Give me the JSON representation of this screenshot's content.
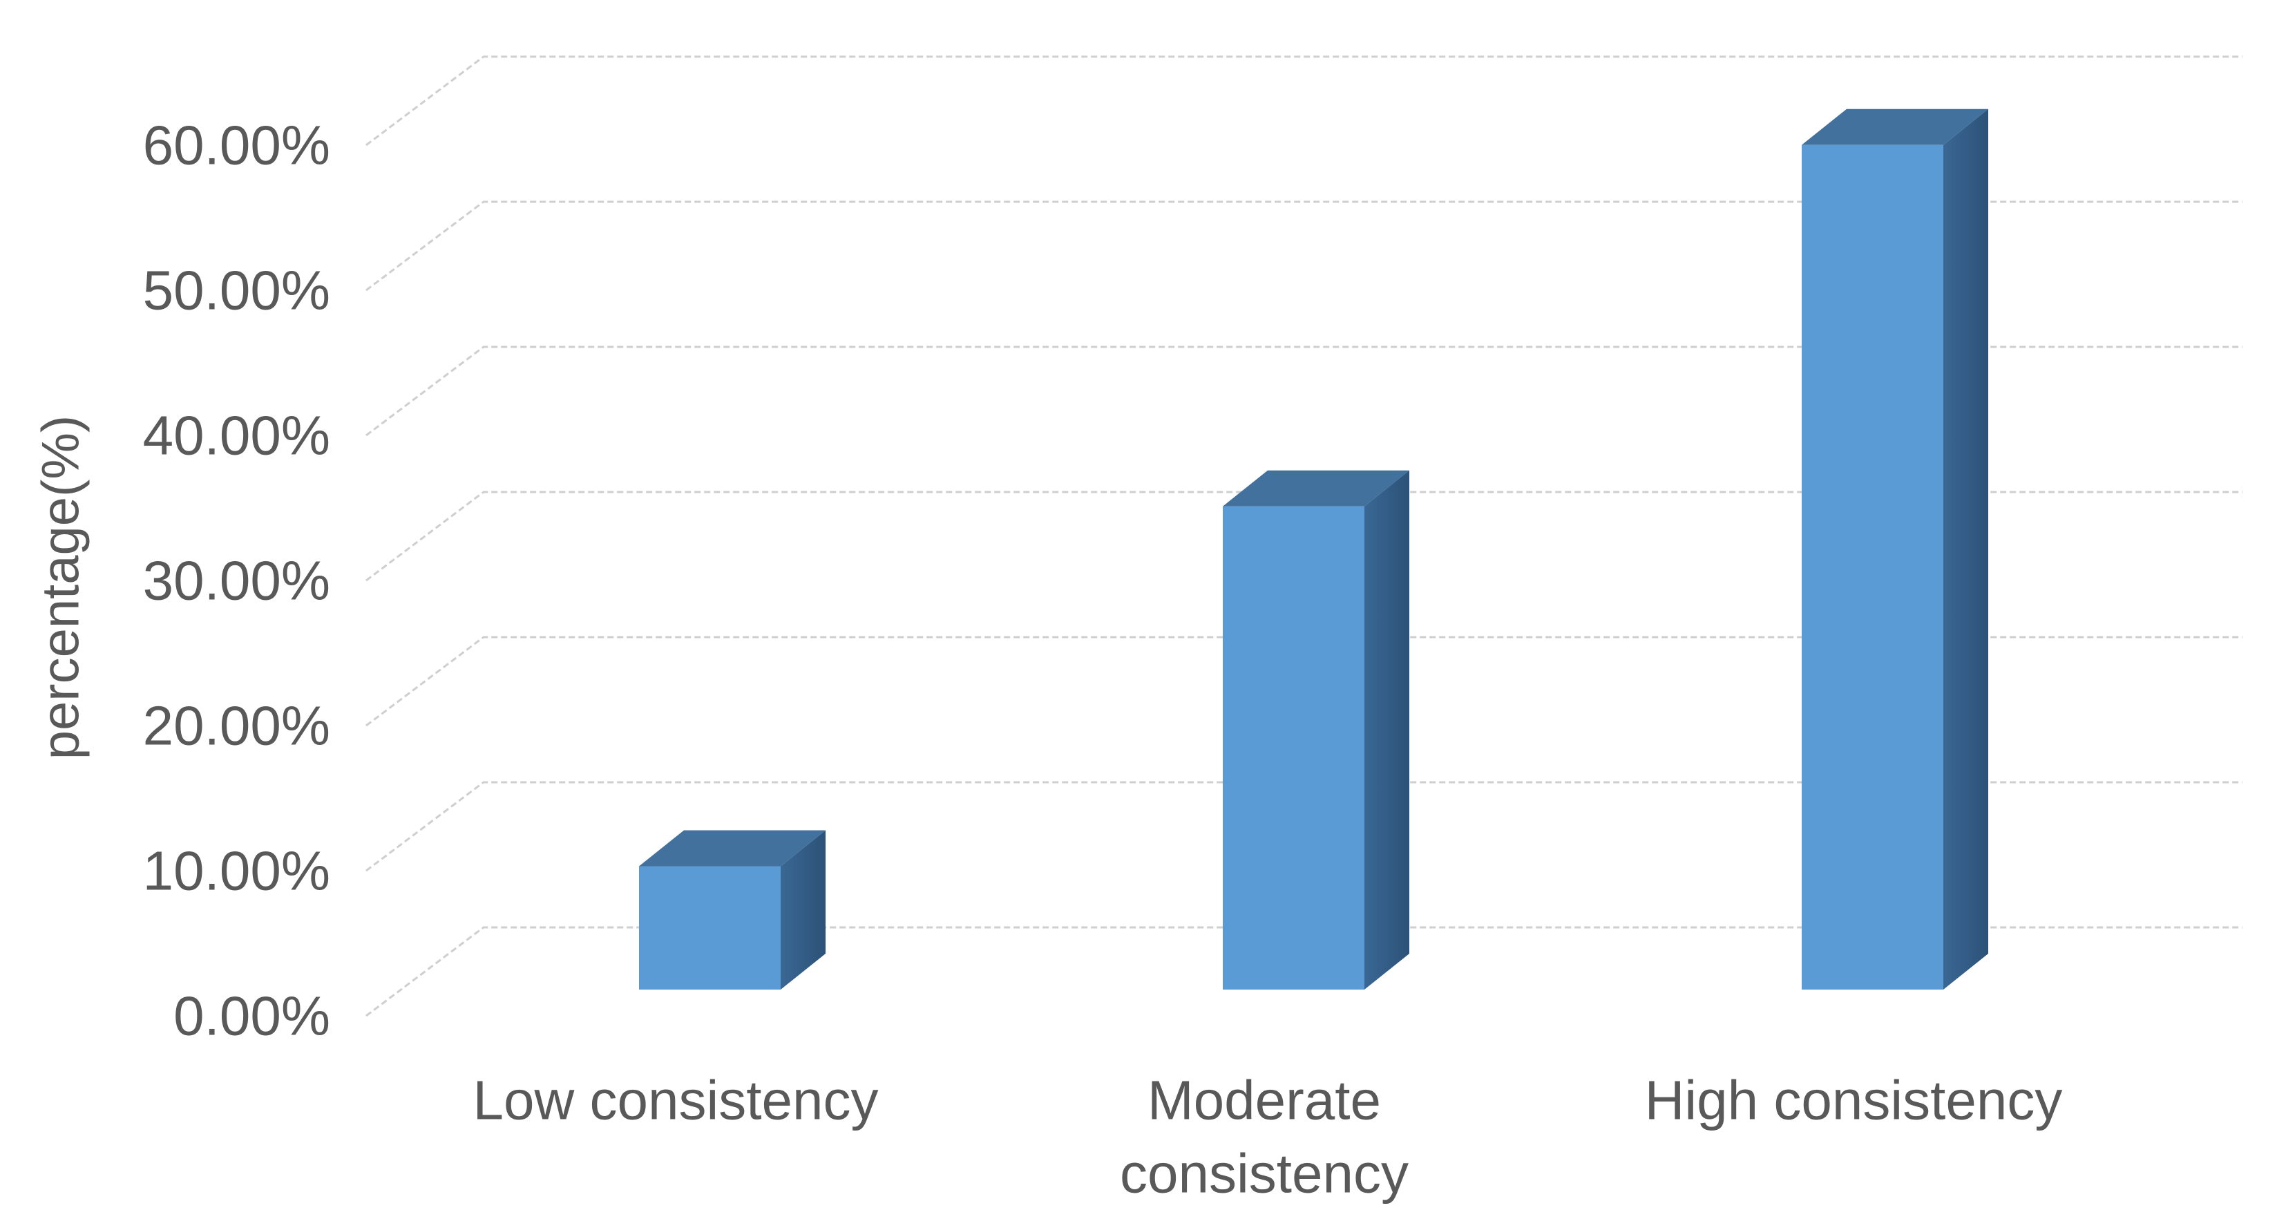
{
  "chart_data": {
    "type": "bar",
    "subtype": "3d-column",
    "title": "",
    "xlabel": "",
    "ylabel": "percentage(%)",
    "categories": [
      "Low consistency",
      "Moderate consistency",
      "High consistency"
    ],
    "categories_wrapped": [
      [
        "Low consistency"
      ],
      [
        "Moderate",
        "consistency"
      ],
      [
        "High consistency"
      ]
    ],
    "series": [
      {
        "name": "percentage",
        "values": [
          8.5,
          33.3,
          58.2
        ]
      }
    ],
    "values_unit": "%",
    "ylim": [
      0,
      60
    ],
    "ytick_step": 10,
    "yticks": [
      0,
      10,
      20,
      30,
      40,
      50,
      60
    ],
    "ytick_labels": [
      "0.00%",
      "10.00%",
      "20.00%",
      "30.00%",
      "40.00%",
      "50.00%",
      "60.00%"
    ],
    "grid": true,
    "legend": false,
    "colors": {
      "bar_front": "#5B9BD5",
      "bar_top": "#41719C",
      "bar_side": "#3A6795",
      "bar_side_dark": "#2C5277",
      "gridline": "#CFCFCF",
      "label_text": "#595959",
      "background": "#FFFFFF"
    }
  }
}
